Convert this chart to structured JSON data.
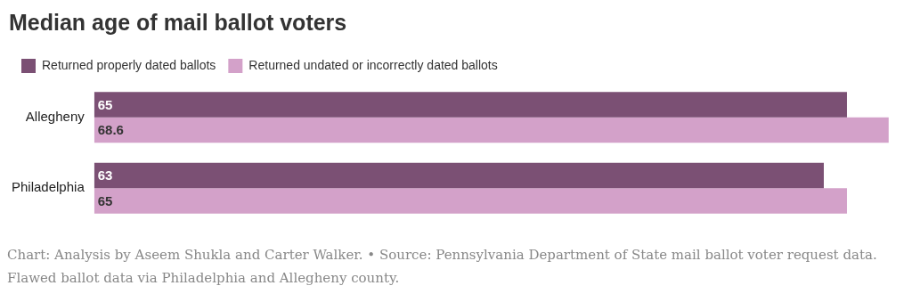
{
  "chart_data": {
    "type": "bar",
    "orientation": "horizontal",
    "title": "Median age of mail ballot voters",
    "categories": [
      "Allegheny",
      "Philadelphia"
    ],
    "series": [
      {
        "name": "Returned properly dated ballots",
        "color": "#7b5074",
        "values": [
          65,
          63
        ]
      },
      {
        "name": "Returned undated or incorrectly dated ballots",
        "color": "#d3a1c9",
        "values": [
          68.6,
          65
        ]
      }
    ],
    "data_labels": true,
    "legend": "top left",
    "annotations": [
      "Chart: Analysis by Aseem Shukla and Carter Walker. • Source: Pennsylvania Department of State mail ballot voter request data. Flawed ballot data via Philadelphia and Allegheny county."
    ]
  }
}
